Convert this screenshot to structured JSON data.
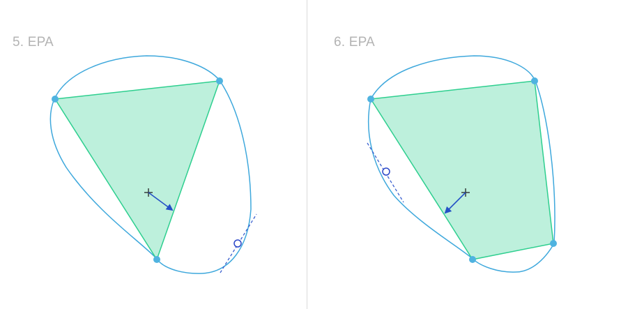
{
  "panels": [
    {
      "label": "5. EPA"
    },
    {
      "label": "6. EPA"
    }
  ],
  "colors": {
    "shape_outline": "#3ea8dc",
    "polytope_fill": "#bdf0dc",
    "polytope_edge": "#2ecf8f",
    "vertex": "#4fb3e0",
    "origin_marker": "#222222",
    "normal_arrow": "#2451c6",
    "support_point": "#2a46c8",
    "support_line": "#3a5fcf",
    "divider": "#d9d9d9",
    "label": "#b3b3b3"
  }
}
